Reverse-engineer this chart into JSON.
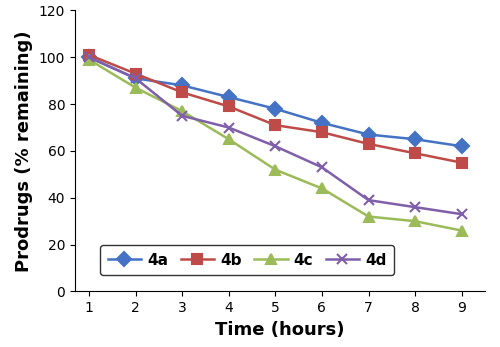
{
  "time": [
    1,
    2,
    3,
    4,
    5,
    6,
    7,
    8,
    9
  ],
  "4a": [
    100,
    91,
    88,
    83,
    78,
    72,
    67,
    65,
    62
  ],
  "4b": [
    101,
    93,
    85,
    79,
    71,
    68,
    63,
    59,
    55
  ],
  "4c": [
    99,
    87,
    77,
    65,
    52,
    44,
    32,
    30,
    26
  ],
  "4d": [
    100,
    91,
    75,
    70,
    62,
    53,
    39,
    36,
    33
  ],
  "colors": {
    "4a": "#4472C4",
    "4b": "#BE4B48",
    "4c": "#9BBB59",
    "4d": "#7F5FA9"
  },
  "markers": {
    "4a": "D",
    "4b": "s",
    "4c": "^",
    "4d": "x"
  },
  "ylabel": "Prodrugs (% remaining)",
  "xlabel": "Time (hours)",
  "ylim": [
    0,
    120
  ],
  "xlim": [
    0.7,
    9.5
  ],
  "yticks": [
    0,
    20,
    40,
    60,
    80,
    100,
    120
  ],
  "xticks": [
    1,
    2,
    3,
    4,
    5,
    6,
    7,
    8,
    9
  ],
  "legend_labels": [
    "4a",
    "4b",
    "4c",
    "4d"
  ],
  "axis_fontsize": 13,
  "tick_fontsize": 10,
  "legend_fontsize": 11,
  "linewidth": 1.8,
  "markersize": 7
}
